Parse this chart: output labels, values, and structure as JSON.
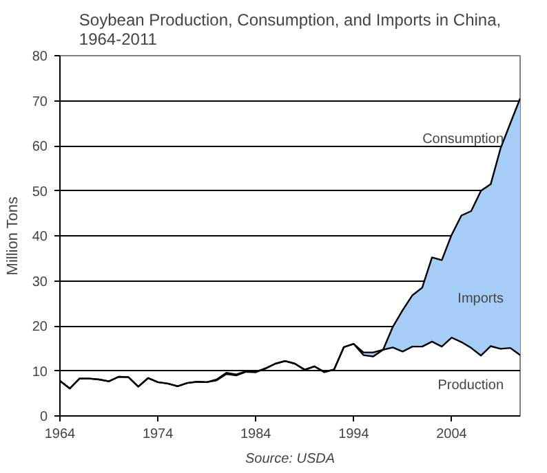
{
  "chart_data": {
    "type": "line",
    "title": "Soybean Production, Consumption, and Imports in China,\n1964-2011",
    "ylabel": "Million Tons",
    "x": [
      1964,
      1965,
      1966,
      1967,
      1968,
      1969,
      1970,
      1971,
      1972,
      1973,
      1974,
      1975,
      1976,
      1977,
      1978,
      1979,
      1980,
      1981,
      1982,
      1983,
      1984,
      1985,
      1986,
      1987,
      1988,
      1989,
      1990,
      1991,
      1992,
      1993,
      1994,
      1995,
      1996,
      1997,
      1998,
      1999,
      2000,
      2001,
      2002,
      2003,
      2004,
      2005,
      2006,
      2007,
      2008,
      2009,
      2010,
      2011
    ],
    "series": [
      {
        "name": "Consumption",
        "color": "#000000",
        "values": [
          7.8,
          6.1,
          8.3,
          8.3,
          8.1,
          7.7,
          8.7,
          8.6,
          6.5,
          8.4,
          7.5,
          7.2,
          6.6,
          7.3,
          7.6,
          7.5,
          8.1,
          9.6,
          9.2,
          9.9,
          9.8,
          10.6,
          11.6,
          12.2,
          11.6,
          10.3,
          11.0,
          9.8,
          10.3,
          15.3,
          16.0,
          14.1,
          14.1,
          14.7,
          19.8,
          23.5,
          26.8,
          28.5,
          35.2,
          34.6,
          40.2,
          44.5,
          45.5,
          50.0,
          51.5,
          59.4,
          65.0,
          70.5
        ],
        "lower": [
          7.8,
          6.1,
          8.3,
          8.3,
          8.1,
          7.7,
          8.7,
          8.6,
          6.5,
          8.4,
          7.5,
          7.2,
          6.6,
          7.3,
          7.6,
          7.5,
          7.9,
          9.3,
          9.0,
          9.8,
          9.7,
          10.5,
          11.6,
          12.2,
          11.6,
          10.2,
          11.0,
          9.7,
          10.3,
          15.3,
          16.0,
          13.5,
          13.2,
          14.7,
          15.2,
          14.3,
          15.4,
          15.4,
          16.5,
          15.4,
          17.4,
          16.4,
          15.1,
          13.4,
          15.5,
          14.9,
          15.1,
          13.5
        ],
        "upper": [
          7.8,
          6.1,
          8.3,
          8.3,
          8.1,
          7.7,
          8.7,
          8.6,
          6.5,
          8.4,
          7.5,
          7.2,
          6.6,
          7.3,
          7.6,
          7.5,
          8.1,
          9.6,
          9.2,
          9.9,
          9.8,
          10.6,
          11.6,
          12.2,
          11.6,
          10.3,
          11.0,
          9.8,
          10.3,
          15.3,
          16.0,
          14.1,
          14.1,
          14.7,
          19.8,
          23.5,
          26.8,
          28.5,
          35.2,
          34.6,
          40.2,
          44.5,
          45.5,
          50.0,
          51.5,
          59.4,
          65.0,
          70.5
        ]
      },
      {
        "name": "Production",
        "color": "#000000",
        "values": [
          7.8,
          6.1,
          8.3,
          8.3,
          8.1,
          7.7,
          8.7,
          8.6,
          6.5,
          8.4,
          7.5,
          7.2,
          6.6,
          7.3,
          7.6,
          7.5,
          7.9,
          9.3,
          9.0,
          9.8,
          9.7,
          10.5,
          11.6,
          12.2,
          11.6,
          10.2,
          11.0,
          9.7,
          10.3,
          15.3,
          16.0,
          13.5,
          13.2,
          14.7,
          15.2,
          14.3,
          15.4,
          15.4,
          16.5,
          15.4,
          17.4,
          16.4,
          15.1,
          13.4,
          15.5,
          14.9,
          15.1,
          13.5
        ]
      }
    ],
    "xlim": [
      1964,
      2011
    ],
    "xticks": [
      1964,
      1974,
      1984,
      1994,
      2004
    ],
    "ylim": [
      0,
      80
    ],
    "yticks": [
      0,
      10,
      20,
      30,
      40,
      50,
      60,
      70,
      80
    ],
    "grid": "y",
    "annotations": [
      "Imports",
      "Source: USDA"
    ]
  }
}
